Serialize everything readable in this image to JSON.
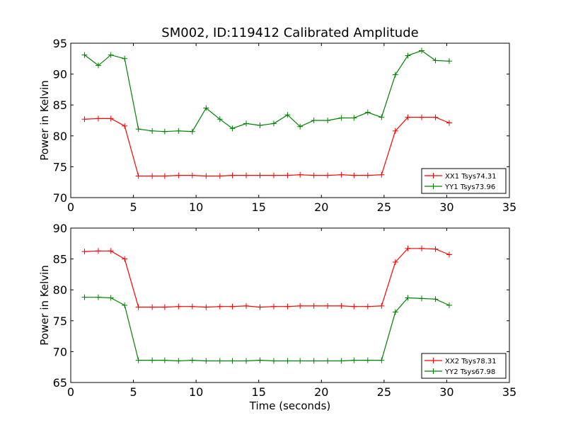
{
  "chart_data": [
    {
      "type": "line",
      "title": "SM002, ID:119412 Calibrated Amplitude",
      "xlabel": "",
      "ylabel": "Power in Kelvin",
      "xlim": [
        0,
        35
      ],
      "ylim": [
        70,
        95
      ],
      "xticks": [
        0,
        5,
        10,
        15,
        20,
        25,
        30,
        35
      ],
      "yticks": [
        70,
        75,
        80,
        85,
        90,
        95
      ],
      "grid": false,
      "legend_position": "lower-right",
      "x": [
        1.1,
        2.2,
        3.2,
        4.3,
        5.4,
        6.5,
        7.5,
        8.6,
        9.7,
        10.8,
        11.9,
        12.9,
        14.0,
        15.1,
        16.2,
        17.3,
        18.3,
        19.4,
        20.5,
        21.6,
        22.6,
        23.7,
        24.8,
        25.9,
        26.9,
        28.0,
        29.1,
        30.2
      ],
      "series": [
        {
          "name": "XX1 Tsys74.31",
          "color": "#ff0000",
          "values": [
            82.7,
            82.8,
            82.8,
            81.6,
            73.5,
            73.5,
            73.5,
            73.6,
            73.6,
            73.5,
            73.5,
            73.6,
            73.6,
            73.6,
            73.6,
            73.6,
            73.7,
            73.6,
            73.6,
            73.7,
            73.6,
            73.6,
            73.7,
            80.8,
            83.0,
            83.0,
            83.0,
            82.1
          ]
        },
        {
          "name": "YY1 Tsys73.96",
          "color": "#008000",
          "values": [
            93.1,
            91.4,
            93.1,
            92.5,
            81.1,
            80.8,
            80.7,
            80.8,
            80.7,
            84.5,
            82.7,
            81.2,
            82.0,
            81.7,
            82.0,
            83.4,
            81.5,
            82.5,
            82.5,
            82.9,
            82.9,
            83.8,
            83.0,
            89.9,
            93.0,
            93.8,
            92.2,
            92.1
          ]
        }
      ]
    },
    {
      "type": "line",
      "title": "",
      "xlabel": "Time (seconds)",
      "ylabel": "Power in Kelvin",
      "xlim": [
        0,
        35
      ],
      "ylim": [
        65,
        90
      ],
      "xticks": [
        0,
        5,
        10,
        15,
        20,
        25,
        30,
        35
      ],
      "yticks": [
        65,
        70,
        75,
        80,
        85,
        90
      ],
      "grid": false,
      "legend_position": "lower-right",
      "x": [
        1.1,
        2.2,
        3.2,
        4.3,
        5.4,
        6.5,
        7.5,
        8.6,
        9.7,
        10.8,
        11.9,
        12.9,
        14.0,
        15.1,
        16.2,
        17.3,
        18.3,
        19.4,
        20.5,
        21.6,
        22.6,
        23.7,
        24.8,
        25.9,
        26.9,
        28.0,
        29.1,
        30.2
      ],
      "series": [
        {
          "name": "XX2 Tsys78.31",
          "color": "#ff0000",
          "values": [
            86.2,
            86.3,
            86.3,
            85.0,
            77.2,
            77.2,
            77.2,
            77.3,
            77.3,
            77.2,
            77.3,
            77.3,
            77.4,
            77.2,
            77.3,
            77.3,
            77.4,
            77.4,
            77.4,
            77.4,
            77.3,
            77.3,
            77.4,
            84.5,
            86.7,
            86.7,
            86.6,
            85.7
          ]
        },
        {
          "name": "YY2 Tsys67.98",
          "color": "#008000",
          "values": [
            78.8,
            78.8,
            78.7,
            77.5,
            68.6,
            68.6,
            68.6,
            68.5,
            68.6,
            68.5,
            68.5,
            68.5,
            68.5,
            68.6,
            68.5,
            68.5,
            68.5,
            68.5,
            68.5,
            68.5,
            68.6,
            68.6,
            68.6,
            76.4,
            78.7,
            78.6,
            78.5,
            77.5
          ]
        }
      ]
    }
  ]
}
